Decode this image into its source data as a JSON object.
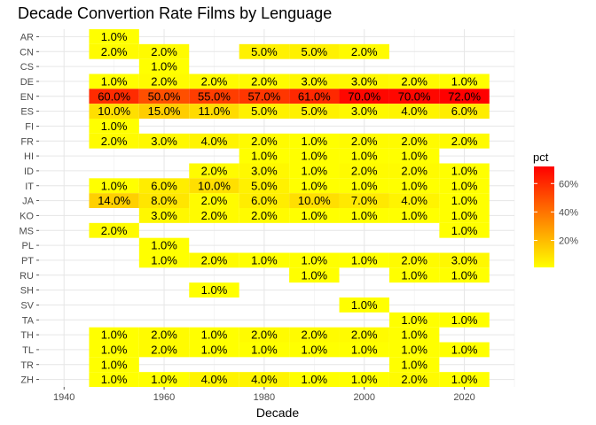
{
  "chart_data": {
    "type": "heatmap",
    "title": "Decade Convertion Rate Films by Lenguage",
    "xlabel": "Decade",
    "ylabel": "",
    "x_ticks": [
      1940,
      1960,
      1980,
      2000,
      2020
    ],
    "xlim": [
      1935,
      2030
    ],
    "decades": [
      1950,
      1960,
      1970,
      1980,
      1990,
      2000,
      2010,
      2020
    ],
    "languages": [
      "AR",
      "CN",
      "CS",
      "DE",
      "EN",
      "ES",
      "FI",
      "FR",
      "HI",
      "ID",
      "IT",
      "JA",
      "KO",
      "MS",
      "PL",
      "PT",
      "RU",
      "SH",
      "SV",
      "TA",
      "TH",
      "TL",
      "TR",
      "ZH"
    ],
    "color_scale": {
      "low": "#FFFF00",
      "high": "#FF0000",
      "min": 1,
      "max": 72
    },
    "value_format": "%.1f%%",
    "cells": [
      {
        "lang": "AR",
        "decade": 1950,
        "value": 1
      },
      {
        "lang": "CN",
        "decade": 1950,
        "value": 2
      },
      {
        "lang": "CN",
        "decade": 1960,
        "value": 2
      },
      {
        "lang": "CN",
        "decade": 1980,
        "value": 5
      },
      {
        "lang": "CN",
        "decade": 1990,
        "value": 5
      },
      {
        "lang": "CN",
        "decade": 2000,
        "value": 2
      },
      {
        "lang": "CS",
        "decade": 1960,
        "value": 1
      },
      {
        "lang": "DE",
        "decade": 1950,
        "value": 1
      },
      {
        "lang": "DE",
        "decade": 1960,
        "value": 2
      },
      {
        "lang": "DE",
        "decade": 1970,
        "value": 2
      },
      {
        "lang": "DE",
        "decade": 1980,
        "value": 2
      },
      {
        "lang": "DE",
        "decade": 1990,
        "value": 3
      },
      {
        "lang": "DE",
        "decade": 2000,
        "value": 3
      },
      {
        "lang": "DE",
        "decade": 2010,
        "value": 2
      },
      {
        "lang": "DE",
        "decade": 2020,
        "value": 1
      },
      {
        "lang": "EN",
        "decade": 1950,
        "value": 60
      },
      {
        "lang": "EN",
        "decade": 1960,
        "value": 50
      },
      {
        "lang": "EN",
        "decade": 1970,
        "value": 55
      },
      {
        "lang": "EN",
        "decade": 1980,
        "value": 57
      },
      {
        "lang": "EN",
        "decade": 1990,
        "value": 61
      },
      {
        "lang": "EN",
        "decade": 2000,
        "value": 70
      },
      {
        "lang": "EN",
        "decade": 2010,
        "value": 70
      },
      {
        "lang": "EN",
        "decade": 2020,
        "value": 72
      },
      {
        "lang": "ES",
        "decade": 1950,
        "value": 10
      },
      {
        "lang": "ES",
        "decade": 1960,
        "value": 15
      },
      {
        "lang": "ES",
        "decade": 1970,
        "value": 11
      },
      {
        "lang": "ES",
        "decade": 1980,
        "value": 5
      },
      {
        "lang": "ES",
        "decade": 1990,
        "value": 5
      },
      {
        "lang": "ES",
        "decade": 2000,
        "value": 3
      },
      {
        "lang": "ES",
        "decade": 2010,
        "value": 4
      },
      {
        "lang": "ES",
        "decade": 2020,
        "value": 6
      },
      {
        "lang": "FI",
        "decade": 1950,
        "value": 1
      },
      {
        "lang": "FR",
        "decade": 1950,
        "value": 2
      },
      {
        "lang": "FR",
        "decade": 1960,
        "value": 3
      },
      {
        "lang": "FR",
        "decade": 1970,
        "value": 4
      },
      {
        "lang": "FR",
        "decade": 1980,
        "value": 2
      },
      {
        "lang": "FR",
        "decade": 1990,
        "value": 1
      },
      {
        "lang": "FR",
        "decade": 2000,
        "value": 2
      },
      {
        "lang": "FR",
        "decade": 2010,
        "value": 2
      },
      {
        "lang": "FR",
        "decade": 2020,
        "value": 2
      },
      {
        "lang": "HI",
        "decade": 1980,
        "value": 1
      },
      {
        "lang": "HI",
        "decade": 1990,
        "value": 1
      },
      {
        "lang": "HI",
        "decade": 2000,
        "value": 1
      },
      {
        "lang": "HI",
        "decade": 2010,
        "value": 1
      },
      {
        "lang": "ID",
        "decade": 1970,
        "value": 2
      },
      {
        "lang": "ID",
        "decade": 1980,
        "value": 3
      },
      {
        "lang": "ID",
        "decade": 1990,
        "value": 1
      },
      {
        "lang": "ID",
        "decade": 2000,
        "value": 2
      },
      {
        "lang": "ID",
        "decade": 2010,
        "value": 2
      },
      {
        "lang": "ID",
        "decade": 2020,
        "value": 1
      },
      {
        "lang": "IT",
        "decade": 1950,
        "value": 1
      },
      {
        "lang": "IT",
        "decade": 1960,
        "value": 6
      },
      {
        "lang": "IT",
        "decade": 1970,
        "value": 10
      },
      {
        "lang": "IT",
        "decade": 1980,
        "value": 5
      },
      {
        "lang": "IT",
        "decade": 1990,
        "value": 1
      },
      {
        "lang": "IT",
        "decade": 2000,
        "value": 1
      },
      {
        "lang": "IT",
        "decade": 2010,
        "value": 1
      },
      {
        "lang": "IT",
        "decade": 2020,
        "value": 1
      },
      {
        "lang": "JA",
        "decade": 1950,
        "value": 14
      },
      {
        "lang": "JA",
        "decade": 1960,
        "value": 8
      },
      {
        "lang": "JA",
        "decade": 1970,
        "value": 2
      },
      {
        "lang": "JA",
        "decade": 1980,
        "value": 6
      },
      {
        "lang": "JA",
        "decade": 1990,
        "value": 10
      },
      {
        "lang": "JA",
        "decade": 2000,
        "value": 7
      },
      {
        "lang": "JA",
        "decade": 2010,
        "value": 4
      },
      {
        "lang": "JA",
        "decade": 2020,
        "value": 1
      },
      {
        "lang": "KO",
        "decade": 1960,
        "value": 3
      },
      {
        "lang": "KO",
        "decade": 1970,
        "value": 2
      },
      {
        "lang": "KO",
        "decade": 1980,
        "value": 2
      },
      {
        "lang": "KO",
        "decade": 1990,
        "value": 1
      },
      {
        "lang": "KO",
        "decade": 2000,
        "value": 1
      },
      {
        "lang": "KO",
        "decade": 2010,
        "value": 1
      },
      {
        "lang": "KO",
        "decade": 2020,
        "value": 1
      },
      {
        "lang": "MS",
        "decade": 1950,
        "value": 2
      },
      {
        "lang": "MS",
        "decade": 2020,
        "value": 1
      },
      {
        "lang": "PL",
        "decade": 1960,
        "value": 1
      },
      {
        "lang": "PT",
        "decade": 1960,
        "value": 1
      },
      {
        "lang": "PT",
        "decade": 1970,
        "value": 2
      },
      {
        "lang": "PT",
        "decade": 1980,
        "value": 1
      },
      {
        "lang": "PT",
        "decade": 1990,
        "value": 1
      },
      {
        "lang": "PT",
        "decade": 2000,
        "value": 1
      },
      {
        "lang": "PT",
        "decade": 2010,
        "value": 2
      },
      {
        "lang": "PT",
        "decade": 2020,
        "value": 3
      },
      {
        "lang": "RU",
        "decade": 1990,
        "value": 1
      },
      {
        "lang": "RU",
        "decade": 2010,
        "value": 1
      },
      {
        "lang": "RU",
        "decade": 2020,
        "value": 1
      },
      {
        "lang": "SH",
        "decade": 1970,
        "value": 1
      },
      {
        "lang": "SV",
        "decade": 2000,
        "value": 1
      },
      {
        "lang": "TA",
        "decade": 2010,
        "value": 1
      },
      {
        "lang": "TA",
        "decade": 2020,
        "value": 1
      },
      {
        "lang": "TH",
        "decade": 1950,
        "value": 1
      },
      {
        "lang": "TH",
        "decade": 1960,
        "value": 2
      },
      {
        "lang": "TH",
        "decade": 1970,
        "value": 1
      },
      {
        "lang": "TH",
        "decade": 1980,
        "value": 2
      },
      {
        "lang": "TH",
        "decade": 1990,
        "value": 2
      },
      {
        "lang": "TH",
        "decade": 2000,
        "value": 2
      },
      {
        "lang": "TH",
        "decade": 2010,
        "value": 1
      },
      {
        "lang": "TL",
        "decade": 1950,
        "value": 1
      },
      {
        "lang": "TL",
        "decade": 1960,
        "value": 2
      },
      {
        "lang": "TL",
        "decade": 1970,
        "value": 1
      },
      {
        "lang": "TL",
        "decade": 1980,
        "value": 1
      },
      {
        "lang": "TL",
        "decade": 1990,
        "value": 1
      },
      {
        "lang": "TL",
        "decade": 2000,
        "value": 1
      },
      {
        "lang": "TL",
        "decade": 2010,
        "value": 1
      },
      {
        "lang": "TL",
        "decade": 2020,
        "value": 1
      },
      {
        "lang": "TR",
        "decade": 1950,
        "value": 1
      },
      {
        "lang": "TR",
        "decade": 2010,
        "value": 1
      },
      {
        "lang": "ZH",
        "decade": 1950,
        "value": 1
      },
      {
        "lang": "ZH",
        "decade": 1960,
        "value": 1
      },
      {
        "lang": "ZH",
        "decade": 1970,
        "value": 4
      },
      {
        "lang": "ZH",
        "decade": 1980,
        "value": 4
      },
      {
        "lang": "ZH",
        "decade": 1990,
        "value": 1
      },
      {
        "lang": "ZH",
        "decade": 2000,
        "value": 1
      },
      {
        "lang": "ZH",
        "decade": 2010,
        "value": 2
      },
      {
        "lang": "ZH",
        "decade": 2020,
        "value": 1
      }
    ],
    "legend": {
      "title": "pct",
      "ticks": [
        20,
        40,
        60
      ],
      "tick_labels": [
        "20%",
        "40%",
        "60%"
      ]
    },
    "grid": true,
    "legend_position": "right"
  }
}
